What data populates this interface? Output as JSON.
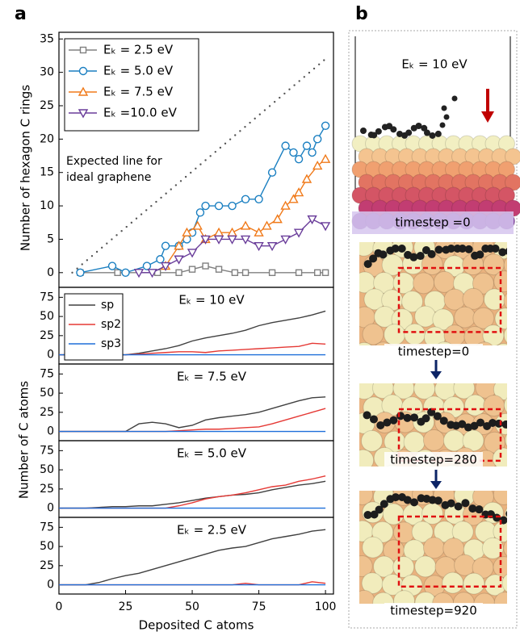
{
  "panel_labels": [
    "a",
    "b"
  ],
  "shared_x_label": "Deposited C atoms",
  "shared_y_label": "Number of C atoms",
  "chart_data": [
    {
      "type": "line",
      "y_label": "Number of hexagon C rings",
      "xlim": [
        0,
        103
      ],
      "ylim": [
        -2.2,
        36
      ],
      "yticks": [
        0,
        5,
        10,
        15,
        20,
        25,
        30,
        35
      ],
      "legend": "upper left",
      "annotation": [
        "Expected line for",
        "ideal graphene"
      ],
      "reference_line": {
        "x": [
          5,
          100
        ],
        "values": [
          0,
          32
        ],
        "color": "#555555",
        "style": "dotted"
      },
      "series": [
        {
          "name": "Eₖ = 2.5  eV",
          "color": "#808080",
          "marker": "square",
          "x": [
            8,
            22,
            37,
            45,
            50,
            55,
            60,
            66,
            70,
            80,
            90,
            97,
            100
          ],
          "values": [
            0,
            0,
            0,
            0,
            0.5,
            1,
            0.5,
            0,
            0,
            0,
            0,
            0,
            0
          ]
        },
        {
          "name": "Eₖ = 5.0  eV",
          "color": "#1a7fc1",
          "marker": "circle",
          "x": [
            8,
            20,
            25,
            33,
            38,
            40,
            45,
            48,
            50,
            53,
            55,
            60,
            65,
            70,
            75,
            80,
            85,
            88,
            90,
            93,
            95,
            97,
            100
          ],
          "values": [
            0,
            1,
            0,
            1,
            2,
            4,
            4,
            5,
            6,
            9,
            10,
            10,
            10,
            11,
            11,
            15,
            19,
            18,
            17,
            19,
            18,
            20,
            22
          ]
        },
        {
          "name": "Eₖ = 7.5  eV",
          "color": "#f07a1a",
          "marker": "triangle-up",
          "x": [
            40,
            45,
            48,
            52,
            55,
            60,
            65,
            70,
            75,
            78,
            82,
            85,
            88,
            90,
            93,
            97,
            100
          ],
          "values": [
            1,
            4,
            6,
            7,
            5,
            6,
            6,
            7,
            6,
            7,
            8,
            10,
            11,
            12,
            14,
            16,
            17
          ]
        },
        {
          "name": "Eₖ =10.0 eV",
          "color": "#6a3d9a",
          "marker": "triangle-down",
          "x": [
            30,
            35,
            40,
            45,
            50,
            55,
            60,
            65,
            70,
            75,
            80,
            85,
            90,
            95,
            100
          ],
          "values": [
            0,
            0,
            1,
            2,
            3,
            5,
            5,
            5,
            5,
            4,
            4,
            5,
            6,
            8,
            7
          ]
        }
      ]
    },
    {
      "type": "line",
      "title": "Eₖ = 10 eV",
      "xlim": [
        0,
        103
      ],
      "ylim": [
        -12,
        88
      ],
      "yticks": [
        0,
        25,
        50,
        75
      ],
      "legend": "upper left",
      "x": [
        0,
        5,
        10,
        15,
        20,
        25,
        30,
        35,
        40,
        45,
        50,
        55,
        60,
        65,
        70,
        75,
        80,
        85,
        90,
        95,
        100
      ],
      "series": [
        {
          "name": "sp",
          "color": "#404040",
          "values": [
            0,
            0,
            0,
            0,
            0,
            0,
            2,
            5,
            8,
            12,
            18,
            22,
            25,
            28,
            32,
            38,
            42,
            45,
            48,
            52,
            57
          ]
        },
        {
          "name": "sp2",
          "color": "#e53935",
          "values": [
            0,
            0,
            0,
            0,
            0,
            0,
            1,
            2,
            3,
            4,
            4,
            3,
            5,
            6,
            7,
            8,
            9,
            10,
            11,
            15,
            14
          ]
        },
        {
          "name": "sp3",
          "color": "#1e6fd9",
          "values": [
            0,
            0,
            0,
            0,
            0,
            0,
            0,
            0,
            0,
            0,
            0,
            0,
            0,
            0,
            0,
            0,
            0,
            0,
            0,
            0,
            0
          ]
        }
      ]
    },
    {
      "type": "line",
      "title": "Eₖ = 7.5 eV",
      "xlim": [
        0,
        103
      ],
      "ylim": [
        -12,
        88
      ],
      "yticks": [
        0,
        25,
        50,
        75
      ],
      "x": [
        0,
        5,
        10,
        15,
        20,
        25,
        30,
        35,
        40,
        45,
        50,
        55,
        60,
        65,
        70,
        75,
        80,
        85,
        90,
        95,
        100
      ],
      "series": [
        {
          "color": "#404040",
          "values": [
            0,
            0,
            0,
            0,
            0,
            0,
            10,
            12,
            10,
            5,
            8,
            15,
            18,
            20,
            22,
            25,
            30,
            35,
            40,
            44,
            45
          ]
        },
        {
          "color": "#e53935",
          "values": [
            0,
            0,
            0,
            0,
            0,
            0,
            0,
            0,
            0,
            1,
            2,
            3,
            3,
            4,
            5,
            6,
            10,
            15,
            20,
            25,
            30
          ]
        },
        {
          "color": "#1e6fd9",
          "values": [
            0,
            0,
            0,
            0,
            0,
            0,
            0,
            0,
            0,
            0,
            0,
            0,
            0,
            0,
            0,
            0,
            0,
            0,
            0,
            0,
            0
          ]
        }
      ]
    },
    {
      "type": "line",
      "title": "Eₖ = 5.0 eV",
      "xlim": [
        0,
        103
      ],
      "ylim": [
        -12,
        88
      ],
      "yticks": [
        0,
        25,
        50,
        75
      ],
      "x": [
        0,
        5,
        10,
        15,
        20,
        25,
        30,
        35,
        40,
        45,
        50,
        55,
        60,
        65,
        70,
        75,
        80,
        85,
        90,
        95,
        100
      ],
      "series": [
        {
          "color": "#404040",
          "values": [
            0,
            0,
            0,
            1,
            2,
            2,
            3,
            3,
            5,
            7,
            10,
            13,
            15,
            17,
            18,
            20,
            24,
            27,
            30,
            32,
            35
          ]
        },
        {
          "color": "#e53935",
          "values": [
            0,
            0,
            0,
            0,
            0,
            0,
            0,
            0,
            0,
            3,
            7,
            12,
            15,
            17,
            20,
            24,
            28,
            30,
            35,
            38,
            42
          ]
        },
        {
          "color": "#1e6fd9",
          "values": [
            0,
            0,
            0,
            0,
            0,
            0,
            0,
            0,
            0,
            0,
            0,
            0,
            0,
            0,
            0,
            0,
            0,
            0,
            0,
            0,
            0
          ]
        }
      ]
    },
    {
      "type": "line",
      "title": "Eₖ = 2.5 eV",
      "xlim": [
        0,
        103
      ],
      "ylim": [
        -12,
        88
      ],
      "yticks": [
        0,
        25,
        50,
        75
      ],
      "xticks": [
        0,
        25,
        50,
        75,
        100
      ],
      "x": [
        0,
        5,
        10,
        15,
        20,
        25,
        30,
        35,
        40,
        45,
        50,
        55,
        60,
        65,
        70,
        75,
        80,
        85,
        90,
        95,
        100
      ],
      "series": [
        {
          "color": "#404040",
          "values": [
            0,
            0,
            0,
            3,
            8,
            12,
            15,
            20,
            25,
            30,
            35,
            40,
            45,
            48,
            50,
            55,
            60,
            63,
            66,
            70,
            72
          ]
        },
        {
          "color": "#e53935",
          "values": [
            0,
            0,
            0,
            0,
            0,
            0,
            0,
            0,
            0,
            0,
            0,
            0,
            0,
            0,
            2,
            0,
            0,
            0,
            0,
            4,
            2
          ]
        },
        {
          "color": "#1e6fd9",
          "values": [
            0,
            0,
            0,
            0,
            0,
            0,
            0,
            0,
            0,
            0,
            0,
            0,
            0,
            0,
            0,
            0,
            0,
            0,
            0,
            0,
            0
          ]
        }
      ]
    }
  ],
  "panel_b": {
    "beam_label": "Eₖ = 10 eV",
    "frames": [
      "timestep =0",
      "timestep=0",
      "timestep=280",
      "timestep=920"
    ]
  }
}
